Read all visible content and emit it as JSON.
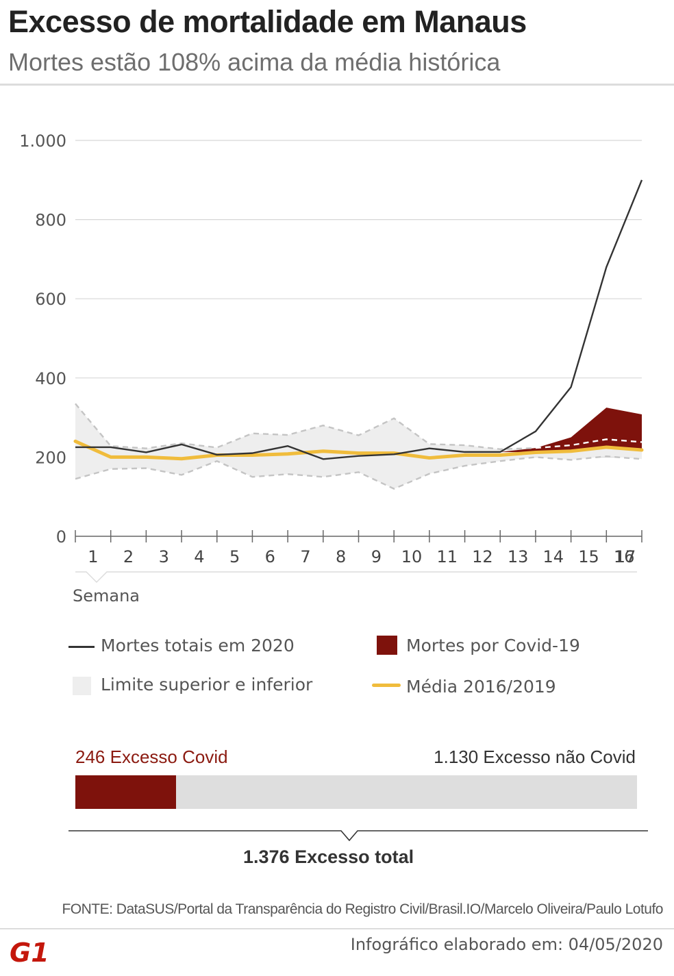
{
  "header": {
    "title": "Excesso de mortalidade em Manaus",
    "subtitle": "Mortes estão 108% acima da média histórica"
  },
  "chart_data": {
    "type": "line",
    "x": [
      1,
      2,
      3,
      4,
      5,
      6,
      7,
      8,
      9,
      10,
      11,
      12,
      13,
      14,
      15,
      16,
      17
    ],
    "x_tick_labels": [
      "1",
      "2",
      "3",
      "4",
      "5",
      "6",
      "7",
      "8",
      "9",
      "10",
      "11",
      "12",
      "13",
      "14",
      "15",
      "16",
      "17"
    ],
    "xlabel": "Semana",
    "y_tick_labels": [
      "0",
      "200",
      "400",
      "600",
      "800",
      "1.000"
    ],
    "y_tick_values": [
      0,
      200,
      400,
      600,
      800,
      1000
    ],
    "ylim": [
      0,
      1000
    ],
    "grid": true,
    "series": [
      {
        "name": "Mortes totais em 2020",
        "color": "#333333",
        "values": [
          225,
          225,
          212,
          232,
          206,
          210,
          228,
          195,
          203,
          207,
          222,
          213,
          213,
          265,
          377,
          680,
          900
        ]
      },
      {
        "name": "Média 2016/2019",
        "color": "#f0bc3c",
        "values": [
          240,
          200,
          200,
          196,
          205,
          205,
          208,
          215,
          210,
          210,
          198,
          205,
          205,
          212,
          215,
          225,
          218
        ]
      },
      {
        "name": "Limite superior",
        "color": "#bbbbbb",
        "values": [
          335,
          228,
          222,
          235,
          224,
          260,
          256,
          280,
          255,
          298,
          233,
          230,
          220,
          223,
          230,
          245,
          238
        ]
      },
      {
        "name": "Limite inferior",
        "color": "#bbbbbb",
        "values": [
          145,
          170,
          172,
          155,
          190,
          150,
          157,
          150,
          162,
          120,
          158,
          178,
          190,
          200,
          193,
          202,
          195
        ]
      }
    ],
    "covid_area": {
      "name": "Mortes por Covid-19",
      "color": "#7e120c",
      "x": [
        13,
        14,
        15,
        16,
        17
      ],
      "upper": [
        213,
        223,
        250,
        325,
        308
      ],
      "lower": [
        213,
        212,
        215,
        225,
        218
      ]
    },
    "band_name": "Limite superior e inferior",
    "band_color": "#eeeeee"
  },
  "legend": [
    {
      "label": "Mortes totais em 2020",
      "color": "#333333"
    },
    {
      "label": "Mortes por Covid-19",
      "color": "#7e120c"
    },
    {
      "label": "Limite superior e inferior",
      "color": "#eeeeee"
    },
    {
      "label": "Média 2016/2019",
      "color": "#f0bc3c"
    }
  ],
  "excess": {
    "covid_label": "246 Excesso Covid",
    "non_covid_label": "1.130 Excesso não Covid",
    "total_label": "1.376 Excesso total",
    "covid_value": 246,
    "non_covid_value": 1130,
    "total_value": 1376,
    "covid_color": "#7e120c"
  },
  "footer": {
    "source": "FONTE: DataSUS/Portal da Transparência do Registro Civil/Brasil.IO/Marcelo Oliveira/Paulo Lotufo",
    "made": "Infográfico elaborado em: 04/05/2020",
    "logo_text": "G1"
  }
}
